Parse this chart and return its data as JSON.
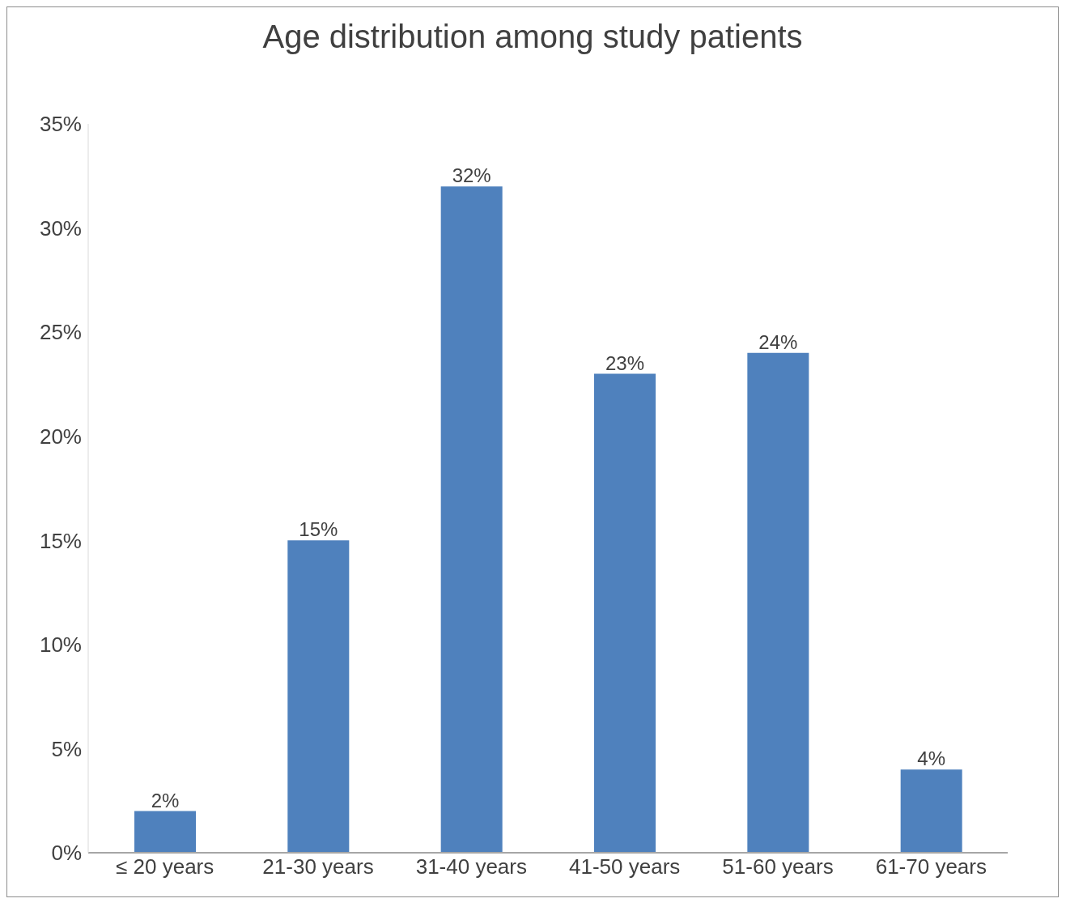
{
  "chart_data": {
    "type": "bar",
    "title": "Age distribution among study patients",
    "categories": [
      "≤ 20 years",
      "21-30 years",
      "31-40 years",
      "41-50 years",
      "51-60 years",
      "61-70 years"
    ],
    "values": [
      2,
      15,
      32,
      23,
      24,
      4
    ],
    "value_labels": [
      "2%",
      "15%",
      "32%",
      "23%",
      "24%",
      "4%"
    ],
    "color": "#4f81bd",
    "ylim": [
      0,
      35
    ],
    "yticks": [
      {
        "value": 0,
        "label": "0%"
      },
      {
        "value": 5,
        "label": "5%"
      },
      {
        "value": 10,
        "label": "10%"
      },
      {
        "value": 15,
        "label": "15%"
      },
      {
        "value": 20,
        "label": "20%"
      },
      {
        "value": 25,
        "label": "25%"
      },
      {
        "value": 30,
        "label": "30%"
      },
      {
        "value": 35,
        "label": "35%"
      }
    ],
    "grid": false,
    "legend": false
  }
}
